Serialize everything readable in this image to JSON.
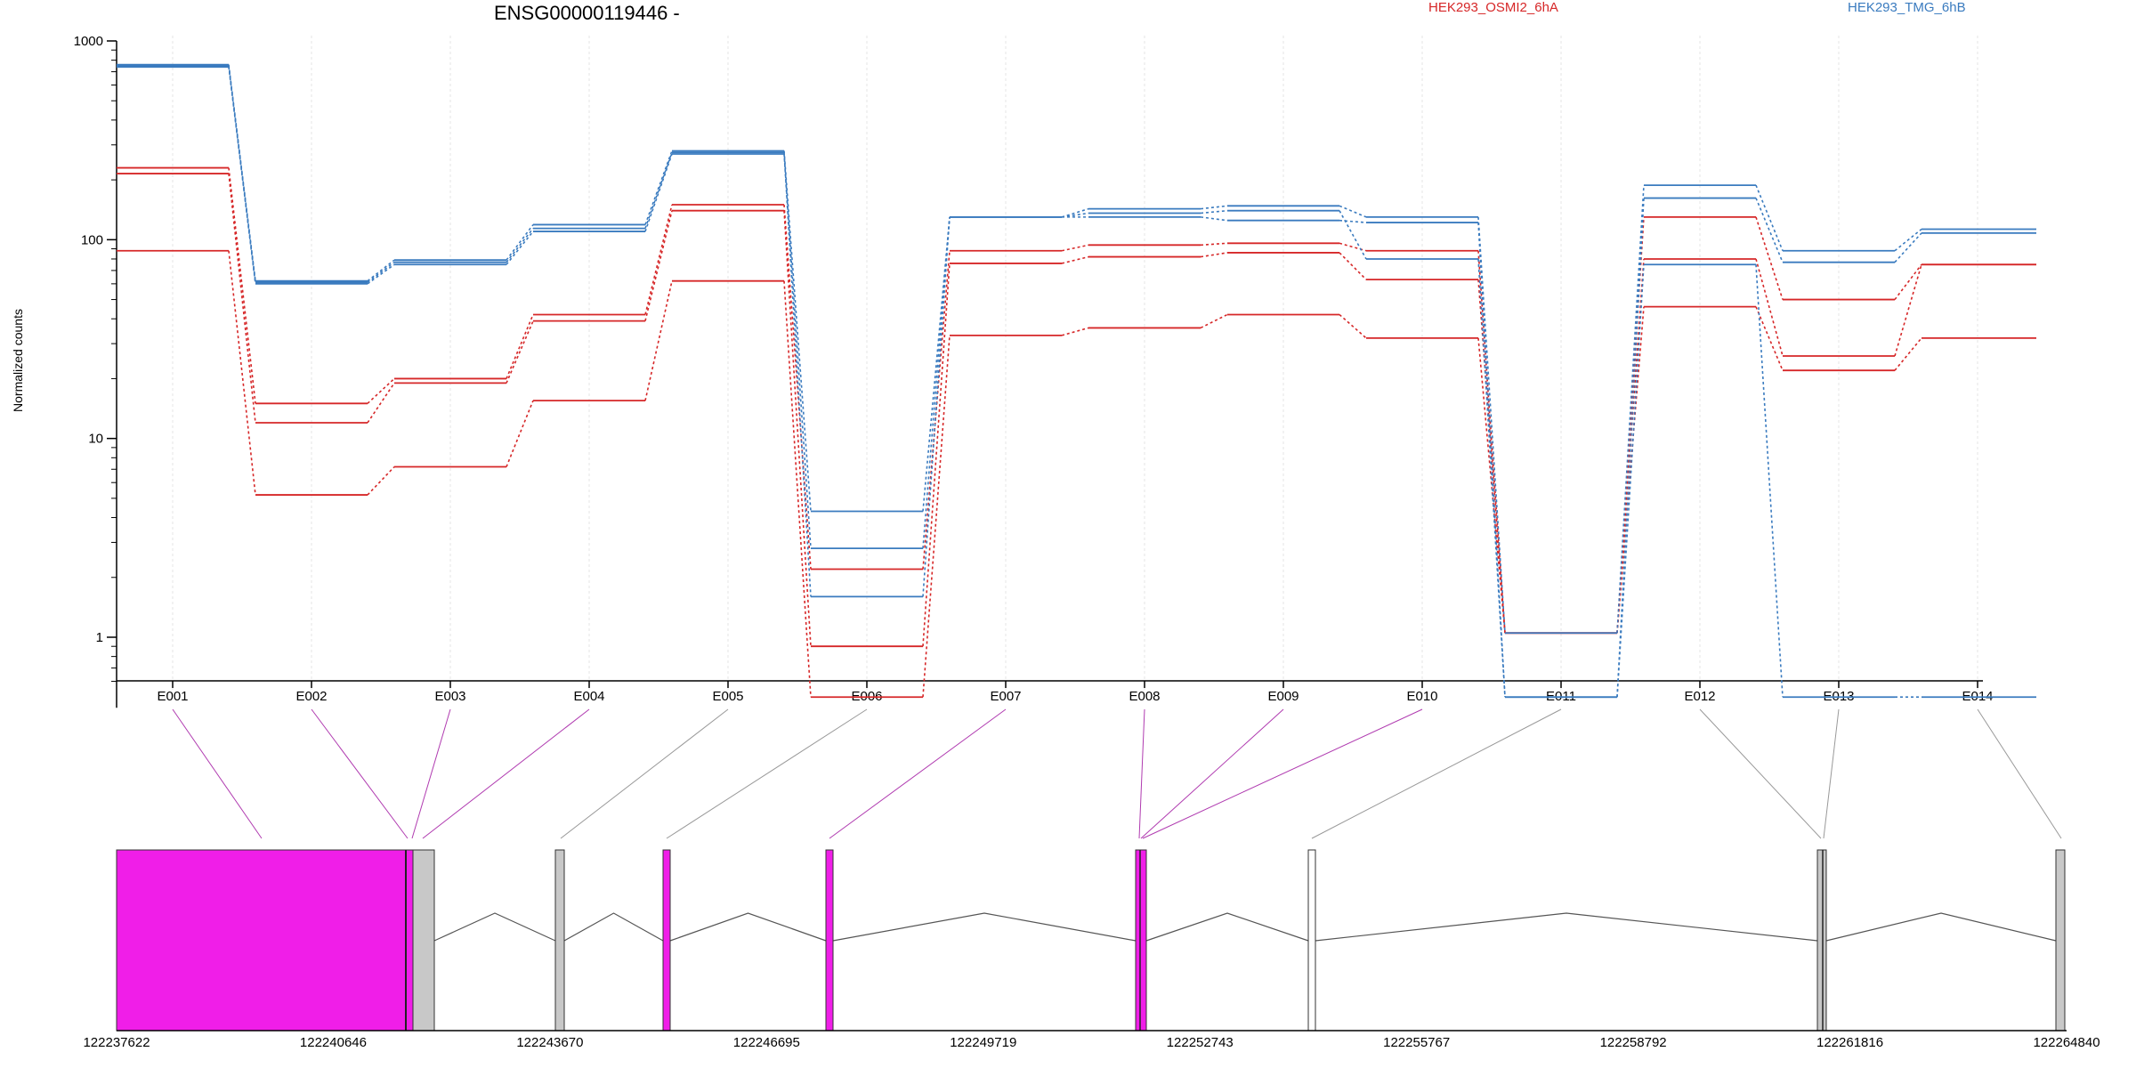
{
  "chart_data": {
    "type": "line",
    "title": "ENSG00000119446 -",
    "ylabel": "Normalized counts",
    "yscale": "log",
    "ylim": [
      0.5,
      1000
    ],
    "y_ticks": [
      1,
      10,
      100,
      1000
    ],
    "categories": [
      "E001",
      "E002",
      "E003",
      "E004",
      "E005",
      "E006",
      "E007",
      "E008",
      "E009",
      "E010",
      "E011",
      "E012",
      "E013",
      "E014"
    ],
    "legend": [
      {
        "name": "HEK293_OSMI2_6hA",
        "color": "#d62728"
      },
      {
        "name": "HEK293_TMG_6hB",
        "color": "#3a7bbf"
      }
    ],
    "series": [
      {
        "group": "HEK293_OSMI2_6hA",
        "color": "#d62728",
        "values": [
          230,
          15,
          20,
          42,
          150,
          2.2,
          88,
          94,
          96,
          88,
          1.05,
          130,
          50,
          75
        ]
      },
      {
        "group": "HEK293_OSMI2_6hA",
        "color": "#d62728",
        "values": [
          215,
          12,
          19,
          39,
          140,
          0.9,
          76,
          82,
          86,
          63,
          1.05,
          80,
          26,
          75
        ]
      },
      {
        "group": "HEK293_OSMI2_6hA",
        "color": "#d62728",
        "values": [
          88,
          5.2,
          7.2,
          15.5,
          62,
          0.5,
          33,
          36,
          42,
          32,
          1.05,
          46,
          22,
          32
        ]
      },
      {
        "group": "HEK293_TMG_6hB",
        "color": "#3a7bbf",
        "values": [
          760,
          62,
          79,
          119,
          280,
          4.3,
          130,
          143,
          148,
          130,
          1.05,
          188,
          88,
          113
        ]
      },
      {
        "group": "HEK293_TMG_6hB",
        "color": "#3a7bbf",
        "values": [
          740,
          60,
          75,
          110,
          270,
          2.8,
          130,
          130,
          125,
          122,
          0.5,
          162,
          77,
          108
        ]
      },
      {
        "group": "HEK293_TMG_6hB",
        "color": "#3a7bbf",
        "values": [
          750,
          61,
          77,
          114,
          275,
          1.6,
          130,
          136,
          140,
          80,
          0.5,
          75,
          0.5,
          0.5
        ]
      }
    ],
    "gene_model": {
      "genomic_ticks": [
        "122237622",
        "122240646",
        "122243670",
        "122246695",
        "122249719",
        "122252743",
        "122255767",
        "122258792",
        "122261816",
        "122264840"
      ],
      "exon_colors": {
        "significant": "#f01ee8",
        "expressed": "#c8c8c8",
        "none": "#ffffff"
      },
      "exons": [
        {
          "id": "E001",
          "status": "significant"
        },
        {
          "id": "E002",
          "status": "significant"
        },
        {
          "id": "E003",
          "status": "significant"
        },
        {
          "id": "E004",
          "status": "significant"
        },
        {
          "id": "E005",
          "status": "expressed"
        },
        {
          "id": "E006",
          "status": "expressed"
        },
        {
          "id": "E007",
          "status": "significant"
        },
        {
          "id": "E008",
          "status": "significant"
        },
        {
          "id": "E009",
          "status": "significant"
        },
        {
          "id": "E010",
          "status": "significant"
        },
        {
          "id": "E011",
          "status": "none"
        },
        {
          "id": "E012",
          "status": "expressed"
        },
        {
          "id": "E013",
          "status": "expressed"
        },
        {
          "id": "E014",
          "status": "expressed"
        }
      ]
    }
  }
}
